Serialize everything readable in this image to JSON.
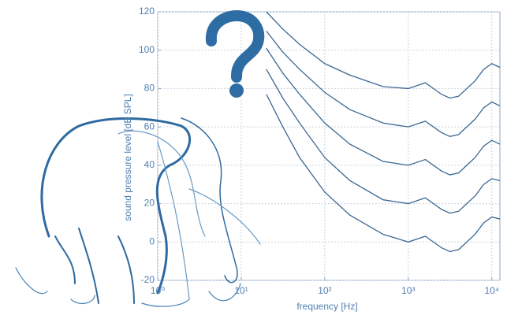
{
  "chart_data": {
    "type": "line",
    "xlabel": "frequency [Hz]",
    "ylabel": "sound pressure level [dB SPL]",
    "x": [
      20,
      31.5,
      50,
      100,
      200,
      500,
      1000,
      1600,
      2500,
      3150,
      4000,
      6300,
      8000,
      10000,
      12500
    ],
    "series": [
      {
        "color": "#3a6792",
        "values": [
          77,
          60,
          44,
          26,
          14,
          4,
          0,
          3,
          -3,
          -5,
          -4,
          4,
          10,
          13,
          12
        ]
      },
      {
        "color": "#3a6792",
        "values": [
          90,
          75,
          62,
          44,
          32,
          22,
          20,
          23,
          17,
          15,
          16,
          24,
          30,
          33,
          32
        ]
      },
      {
        "color": "#3a6792",
        "values": [
          101,
          88,
          77,
          62,
          51,
          42,
          40,
          43,
          37,
          35,
          36,
          44,
          50,
          53,
          51
        ]
      },
      {
        "color": "#3a6792",
        "values": [
          110,
          99,
          90,
          78,
          69,
          62,
          60,
          63,
          57,
          55,
          56,
          64,
          70,
          73,
          71
        ]
      },
      {
        "color": "#3a6792",
        "values": [
          120,
          111,
          103,
          93,
          87,
          81,
          80,
          83,
          77,
          75,
          76,
          84,
          90,
          93,
          91
        ]
      }
    ],
    "xlog": true,
    "xlim": [
      1,
      12500
    ],
    "ylim": [
      -20,
      120
    ],
    "xticks": [
      {
        "value": 1,
        "label": "10⁰"
      },
      {
        "value": 10,
        "label": "10¹"
      },
      {
        "value": 100,
        "label": "10²"
      },
      {
        "value": 1000,
        "label": "10³"
      },
      {
        "value": 10000,
        "label": "10⁴"
      }
    ],
    "yticks": [
      -20,
      0,
      20,
      40,
      60,
      80,
      100,
      120
    ],
    "grid": true
  }
}
